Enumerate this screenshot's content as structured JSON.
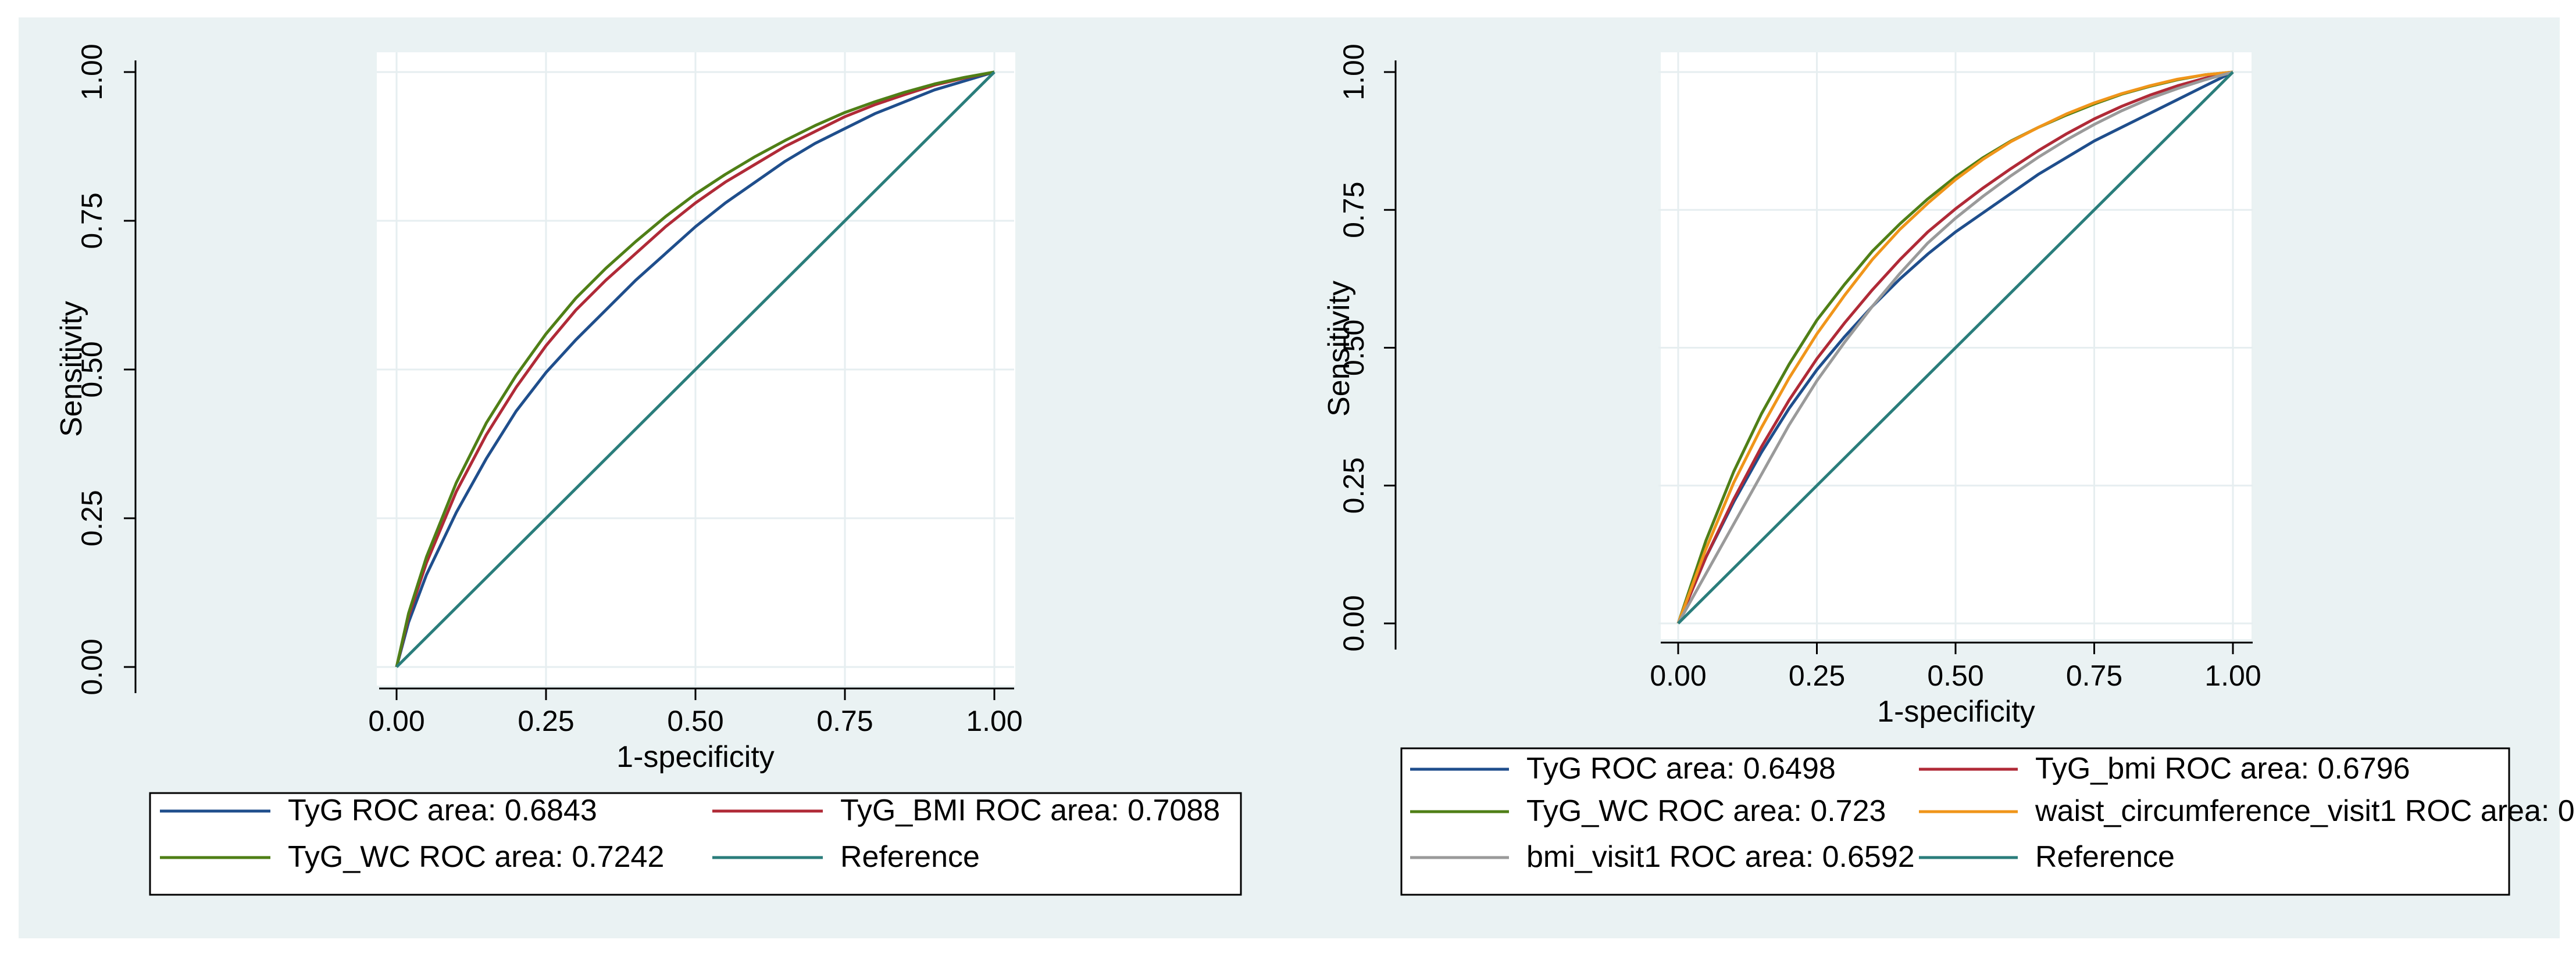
{
  "colors": {
    "outer_background": "#eaf2f3",
    "plot_background": "#ffffff",
    "grid": "#e6eef0",
    "axis": "#000000",
    "TyG": "#1f4e8c",
    "BMI": "#b02a37",
    "WC": "#4f7f16",
    "waist": "#f0951a",
    "bmi_visit1": "#9a9a9a",
    "reference": "#2a7d7b"
  },
  "chart_data": [
    {
      "type": "line",
      "xlabel": "1-specificity",
      "ylabel": "Sensitivity",
      "xlim": [
        0,
        1
      ],
      "ylim": [
        0,
        1
      ],
      "x_ticks": [
        "0.00",
        "0.25",
        "0.50",
        "0.75",
        "1.00"
      ],
      "y_ticks": [
        "0.00",
        "0.25",
        "0.50",
        "0.75",
        "1.00"
      ],
      "grid": true,
      "legend_position": "bottom",
      "legend_columns": 2,
      "series": [
        {
          "name": "TyG ROC area: 0.6843",
          "color_key": "TyG",
          "x": [
            0,
            0.02,
            0.05,
            0.1,
            0.15,
            0.2,
            0.25,
            0.3,
            0.35,
            0.4,
            0.45,
            0.5,
            0.55,
            0.6,
            0.65,
            0.7,
            0.75,
            0.8,
            0.85,
            0.9,
            0.95,
            1.0
          ],
          "y": [
            0,
            0.075,
            0.155,
            0.26,
            0.35,
            0.43,
            0.495,
            0.55,
            0.6,
            0.65,
            0.695,
            0.74,
            0.78,
            0.815,
            0.85,
            0.88,
            0.905,
            0.93,
            0.95,
            0.97,
            0.985,
            1.0
          ]
        },
        {
          "name": "TyG_BMI ROC area: 0.7088",
          "color_key": "BMI",
          "x": [
            0,
            0.02,
            0.05,
            0.1,
            0.15,
            0.2,
            0.25,
            0.3,
            0.35,
            0.4,
            0.45,
            0.5,
            0.55,
            0.6,
            0.65,
            0.7,
            0.75,
            0.8,
            0.85,
            0.9,
            0.95,
            1.0
          ],
          "y": [
            0,
            0.085,
            0.175,
            0.295,
            0.39,
            0.47,
            0.54,
            0.6,
            0.65,
            0.695,
            0.74,
            0.78,
            0.815,
            0.845,
            0.875,
            0.9,
            0.925,
            0.945,
            0.962,
            0.978,
            0.99,
            1.0
          ]
        },
        {
          "name": "TyG_WC ROC area: 0.7242",
          "color_key": "WC",
          "x": [
            0,
            0.02,
            0.05,
            0.1,
            0.15,
            0.2,
            0.25,
            0.3,
            0.35,
            0.4,
            0.45,
            0.5,
            0.55,
            0.6,
            0.65,
            0.7,
            0.75,
            0.8,
            0.85,
            0.9,
            0.95,
            1.0
          ],
          "y": [
            0,
            0.09,
            0.185,
            0.31,
            0.41,
            0.49,
            0.56,
            0.62,
            0.67,
            0.715,
            0.757,
            0.795,
            0.828,
            0.858,
            0.885,
            0.91,
            0.932,
            0.95,
            0.966,
            0.98,
            0.991,
            1.0
          ]
        },
        {
          "name": "Reference",
          "color_key": "reference",
          "x": [
            0,
            1
          ],
          "y": [
            0,
            1
          ]
        }
      ]
    },
    {
      "type": "line",
      "xlabel": "1-specificity",
      "ylabel": "Sensitivity",
      "xlim": [
        0,
        1
      ],
      "ylim": [
        0,
        1
      ],
      "x_ticks": [
        "0.00",
        "0.25",
        "0.50",
        "0.75",
        "1.00"
      ],
      "y_ticks": [
        "0.00",
        "0.25",
        "0.50",
        "0.75",
        "1.00"
      ],
      "grid": true,
      "legend_position": "bottom",
      "legend_columns": 2,
      "series": [
        {
          "name": "TyG ROC area: 0.6498",
          "color_key": "TyG",
          "x": [
            0,
            0.05,
            0.1,
            0.15,
            0.2,
            0.25,
            0.3,
            0.35,
            0.4,
            0.45,
            0.5,
            0.55,
            0.6,
            0.65,
            0.7,
            0.75,
            0.8,
            0.85,
            0.9,
            0.95,
            1.0
          ],
          "y": [
            0,
            0.12,
            0.22,
            0.31,
            0.39,
            0.46,
            0.52,
            0.575,
            0.625,
            0.67,
            0.71,
            0.745,
            0.78,
            0.815,
            0.845,
            0.875,
            0.9,
            0.925,
            0.95,
            0.975,
            1.0
          ]
        },
        {
          "name": "TyG_bmi ROC area: 0.6796",
          "color_key": "BMI",
          "x": [
            0,
            0.05,
            0.1,
            0.15,
            0.2,
            0.25,
            0.3,
            0.35,
            0.4,
            0.45,
            0.5,
            0.55,
            0.6,
            0.65,
            0.7,
            0.75,
            0.8,
            0.85,
            0.9,
            0.95,
            1.0
          ],
          "y": [
            0,
            0.12,
            0.225,
            0.32,
            0.405,
            0.48,
            0.545,
            0.605,
            0.66,
            0.71,
            0.752,
            0.79,
            0.825,
            0.858,
            0.888,
            0.915,
            0.938,
            0.958,
            0.975,
            0.989,
            1.0
          ]
        },
        {
          "name": "TyG_WC ROC area: 0.723",
          "color_key": "WC",
          "x": [
            0,
            0.05,
            0.1,
            0.15,
            0.2,
            0.25,
            0.3,
            0.35,
            0.4,
            0.45,
            0.5,
            0.55,
            0.6,
            0.65,
            0.7,
            0.75,
            0.8,
            0.85,
            0.9,
            0.95,
            1.0
          ],
          "y": [
            0,
            0.15,
            0.275,
            0.38,
            0.47,
            0.55,
            0.615,
            0.675,
            0.725,
            0.77,
            0.81,
            0.845,
            0.875,
            0.9,
            0.922,
            0.942,
            0.96,
            0.974,
            0.986,
            0.995,
            1.0
          ]
        },
        {
          "name": "waist_circumference_visit1 ROC area: 0",
          "color_key": "waist",
          "x": [
            0,
            0.05,
            0.1,
            0.15,
            0.2,
            0.25,
            0.3,
            0.35,
            0.4,
            0.45,
            0.5,
            0.55,
            0.6,
            0.65,
            0.7,
            0.75,
            0.8,
            0.85,
            0.9,
            0.95,
            1.0
          ],
          "y": [
            0,
            0.135,
            0.255,
            0.355,
            0.445,
            0.525,
            0.595,
            0.66,
            0.715,
            0.762,
            0.805,
            0.842,
            0.874,
            0.9,
            0.924,
            0.944,
            0.961,
            0.975,
            0.987,
            0.995,
            1.0
          ]
        },
        {
          "name": "bmi_visit1 ROC area: 0.6592",
          "color_key": "bmi_visit1",
          "x": [
            0,
            0.05,
            0.1,
            0.15,
            0.2,
            0.25,
            0.3,
            0.35,
            0.4,
            0.45,
            0.5,
            0.55,
            0.6,
            0.65,
            0.7,
            0.75,
            0.8,
            0.85,
            0.9,
            0.95,
            1.0
          ],
          "y": [
            0,
            0.09,
            0.18,
            0.27,
            0.36,
            0.44,
            0.51,
            0.575,
            0.635,
            0.69,
            0.735,
            0.775,
            0.812,
            0.846,
            0.877,
            0.905,
            0.93,
            0.952,
            0.97,
            0.986,
            1.0
          ]
        },
        {
          "name": "Reference",
          "color_key": "reference",
          "x": [
            0,
            1
          ],
          "y": [
            0,
            1
          ]
        }
      ]
    }
  ]
}
